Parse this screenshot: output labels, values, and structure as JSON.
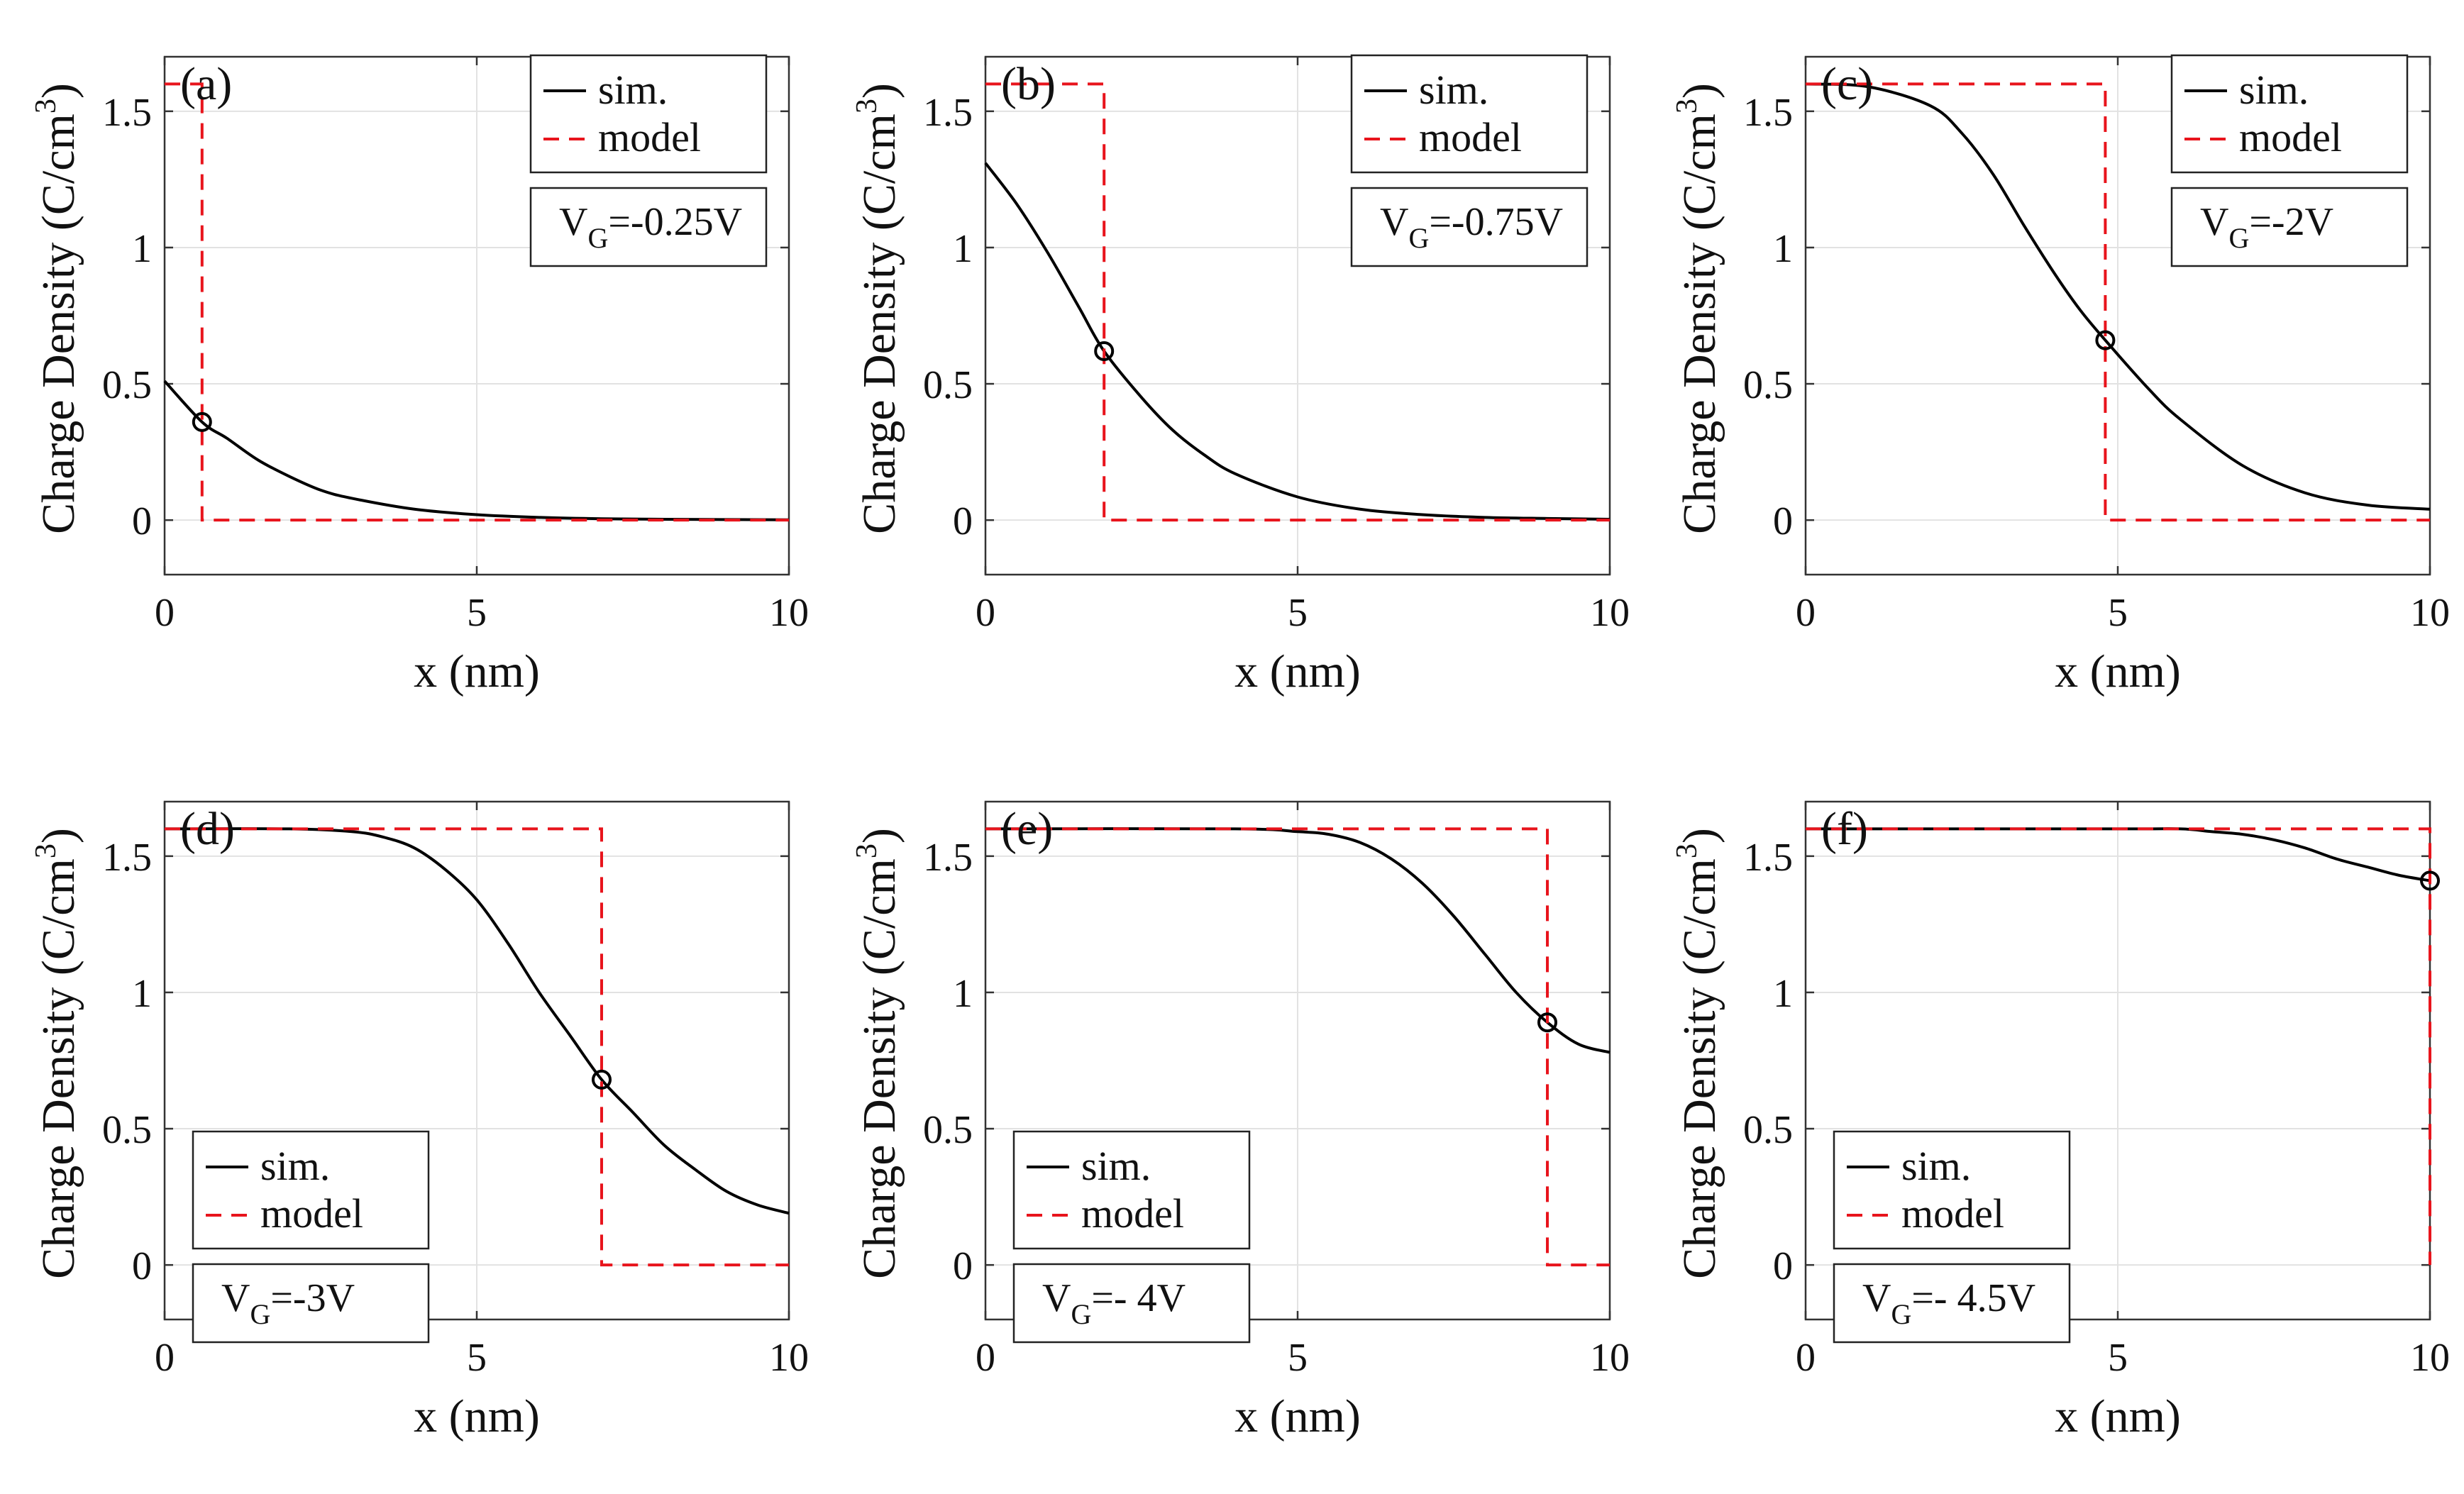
{
  "figure": {
    "rows": 2,
    "cols": 3
  },
  "colors": {
    "sim": "#000000",
    "model": "#e8141c",
    "grid": "#e2e2e2",
    "axis": "#333333"
  },
  "legend_labels": {
    "sim": "sim.",
    "model": "model"
  },
  "chart_data": [
    {
      "type": "line",
      "panel_label": "(a)",
      "xlabel": "x (nm)",
      "ylabel": "Charge Density (C/cm3)",
      "ylabel_main": "Charge Density (C/cm",
      "ylabel_sup": "3",
      "ylabel_close": ")",
      "xlim": [
        0,
        10
      ],
      "ylim": [
        -0.2,
        1.7
      ],
      "xticks": [
        0,
        5,
        10
      ],
      "yticks": [
        0,
        0.5,
        1,
        1.5
      ],
      "xtick_labels": [
        "0",
        "5",
        "10"
      ],
      "ytick_labels": [
        "0",
        "0.5",
        "1",
        "1.5"
      ],
      "grid": true,
      "legend_position": "top-right",
      "annotation": {
        "prefix": "V",
        "sub": "G",
        "suffix": "=-0.25V"
      },
      "series": [
        {
          "name": "sim.",
          "style": "solid",
          "x": [
            0,
            0.6,
            1,
            1.5,
            2,
            2.5,
            3,
            4,
            5,
            6,
            7,
            8,
            9,
            10
          ],
          "y": [
            0.51,
            0.36,
            0.3,
            0.22,
            0.16,
            0.11,
            0.08,
            0.04,
            0.02,
            0.01,
            0.005,
            0.003,
            0.002,
            0.001
          ]
        },
        {
          "name": "model",
          "style": "dashed",
          "x": [
            0,
            0.6,
            0.6,
            10
          ],
          "y": [
            1.6,
            1.6,
            0,
            0
          ]
        }
      ],
      "marker": {
        "x": 0.6,
        "y": 0.36
      }
    },
    {
      "type": "line",
      "panel_label": "(b)",
      "xlabel": "x (nm)",
      "ylabel": "Charge Density (C/cm3)",
      "ylabel_main": "Charge Density (C/cm",
      "ylabel_sup": "3",
      "ylabel_close": ")",
      "xlim": [
        0,
        10
      ],
      "ylim": [
        -0.2,
        1.7
      ],
      "xticks": [
        0,
        5,
        10
      ],
      "yticks": [
        0,
        0.5,
        1,
        1.5
      ],
      "xtick_labels": [
        "0",
        "5",
        "10"
      ],
      "ytick_labels": [
        "0",
        "0.5",
        "1",
        "1.5"
      ],
      "grid": true,
      "legend_position": "top-right",
      "annotation": {
        "prefix": "V",
        "sub": "G",
        "suffix": "=-0.75V"
      },
      "series": [
        {
          "name": "sim.",
          "style": "solid",
          "x": [
            0,
            0.5,
            1,
            1.5,
            1.9,
            2.5,
            3,
            3.5,
            4,
            5,
            6,
            7,
            8,
            9,
            10
          ],
          "y": [
            1.31,
            1.16,
            0.98,
            0.78,
            0.62,
            0.45,
            0.33,
            0.24,
            0.17,
            0.085,
            0.04,
            0.02,
            0.01,
            0.006,
            0.003
          ]
        },
        {
          "name": "model",
          "style": "dashed",
          "x": [
            0,
            1.9,
            1.9,
            10
          ],
          "y": [
            1.6,
            1.6,
            0,
            0
          ]
        }
      ],
      "marker": {
        "x": 1.9,
        "y": 0.62
      }
    },
    {
      "type": "line",
      "panel_label": "(c)",
      "xlabel": "x (nm)",
      "ylabel": "Charge Density (C/cm3)",
      "ylabel_main": "Charge Density (C/cm",
      "ylabel_sup": "3",
      "ylabel_close": ")",
      "xlim": [
        0,
        10
      ],
      "ylim": [
        -0.2,
        1.7
      ],
      "xticks": [
        0,
        5,
        10
      ],
      "yticks": [
        0,
        0.5,
        1,
        1.5
      ],
      "xtick_labels": [
        "0",
        "5",
        "10"
      ],
      "ytick_labels": [
        "0",
        "0.5",
        "1",
        "1.5"
      ],
      "grid": true,
      "legend_position": "top-right",
      "annotation": {
        "prefix": "V",
        "sub": "G",
        "suffix": "=-2V"
      },
      "series": [
        {
          "name": "sim.",
          "style": "solid",
          "x": [
            0,
            1,
            2,
            2.5,
            3,
            3.5,
            4,
            4.4,
            4.8,
            5.5,
            6,
            7,
            8,
            9,
            10
          ],
          "y": [
            1.6,
            1.59,
            1.52,
            1.42,
            1.27,
            1.08,
            0.9,
            0.77,
            0.66,
            0.48,
            0.37,
            0.2,
            0.1,
            0.055,
            0.04
          ]
        },
        {
          "name": "model",
          "style": "dashed",
          "x": [
            0,
            4.8,
            4.8,
            10
          ],
          "y": [
            1.6,
            1.6,
            0,
            0
          ]
        }
      ],
      "marker": {
        "x": 4.8,
        "y": 0.66
      }
    },
    {
      "type": "line",
      "panel_label": "(d)",
      "xlabel": "x (nm)",
      "ylabel": "Charge Density (C/cm3)",
      "ylabel_main": "Charge Density (C/cm",
      "ylabel_sup": "3",
      "ylabel_close": ")",
      "xlim": [
        0,
        10
      ],
      "ylim": [
        -0.2,
        1.7
      ],
      "xticks": [
        0,
        5,
        10
      ],
      "yticks": [
        0,
        0.5,
        1,
        1.5
      ],
      "xtick_labels": [
        "0",
        "5",
        "10"
      ],
      "ytick_labels": [
        "0",
        "0.5",
        "1",
        "1.5"
      ],
      "grid": true,
      "legend_position": "bottom-left",
      "annotation": {
        "prefix": "V",
        "sub": "G",
        "suffix": "=-3V"
      },
      "series": [
        {
          "name": "sim.",
          "style": "solid",
          "x": [
            0,
            2,
            3,
            3.5,
            4,
            4.5,
            5,
            5.5,
            6,
            6.5,
            7,
            7.5,
            8,
            8.5,
            9,
            9.5,
            10
          ],
          "y": [
            1.6,
            1.6,
            1.59,
            1.57,
            1.53,
            1.45,
            1.34,
            1.18,
            1.0,
            0.84,
            0.68,
            0.56,
            0.44,
            0.35,
            0.27,
            0.22,
            0.19
          ]
        },
        {
          "name": "model",
          "style": "dashed",
          "x": [
            0,
            7,
            7,
            10
          ],
          "y": [
            1.6,
            1.6,
            0,
            0
          ]
        }
      ],
      "marker": {
        "x": 7,
        "y": 0.68
      }
    },
    {
      "type": "line",
      "panel_label": "(e)",
      "xlabel": "x (nm)",
      "ylabel": "Charge Density (C/cm3)",
      "ylabel_main": "Charge Density (C/cm",
      "ylabel_sup": "3",
      "ylabel_close": ")",
      "xlim": [
        0,
        10
      ],
      "ylim": [
        -0.2,
        1.7
      ],
      "xticks": [
        0,
        5,
        10
      ],
      "yticks": [
        0,
        0.5,
        1,
        1.5
      ],
      "xtick_labels": [
        "0",
        "5",
        "10"
      ],
      "ytick_labels": [
        "0",
        "0.5",
        "1",
        "1.5"
      ],
      "grid": true,
      "legend_position": "bottom-left",
      "annotation": {
        "prefix": "V",
        "sub": "G",
        "suffix": "=- 4V"
      },
      "series": [
        {
          "name": "sim.",
          "style": "solid",
          "x": [
            0,
            4,
            5,
            5.5,
            6,
            6.5,
            7,
            7.5,
            8,
            8.5,
            9,
            9.5,
            10
          ],
          "y": [
            1.6,
            1.6,
            1.59,
            1.58,
            1.55,
            1.49,
            1.4,
            1.28,
            1.14,
            1.0,
            0.89,
            0.81,
            0.78
          ]
        },
        {
          "name": "model",
          "style": "dashed",
          "x": [
            0,
            9,
            9,
            10
          ],
          "y": [
            1.6,
            1.6,
            0,
            0
          ]
        }
      ],
      "marker": {
        "x": 9,
        "y": 0.89
      }
    },
    {
      "type": "line",
      "panel_label": "(f)",
      "xlabel": "x (nm)",
      "ylabel": "Charge Density (C/cm3)",
      "ylabel_main": "Charge Density (C/cm",
      "ylabel_sup": "3",
      "ylabel_close": ")",
      "xlim": [
        0,
        10
      ],
      "ylim": [
        -0.2,
        1.7
      ],
      "xticks": [
        0,
        5,
        10
      ],
      "yticks": [
        0,
        0.5,
        1,
        1.5
      ],
      "xtick_labels": [
        "0",
        "5",
        "10"
      ],
      "ytick_labels": [
        "0",
        "0.5",
        "1",
        "1.5"
      ],
      "grid": true,
      "legend_position": "bottom-left",
      "annotation": {
        "prefix": "V",
        "sub": "G",
        "suffix": "=- 4.5V"
      },
      "series": [
        {
          "name": "sim.",
          "style": "solid",
          "x": [
            0,
            5,
            6,
            6.5,
            7,
            7.5,
            8,
            8.5,
            9,
            9.5,
            10
          ],
          "y": [
            1.6,
            1.6,
            1.6,
            1.59,
            1.58,
            1.56,
            1.53,
            1.49,
            1.46,
            1.43,
            1.41
          ]
        },
        {
          "name": "model",
          "style": "dashed",
          "x": [
            0,
            10,
            10
          ],
          "y": [
            1.6,
            1.6,
            0
          ]
        }
      ],
      "marker": {
        "x": 10,
        "y": 1.41
      }
    }
  ]
}
